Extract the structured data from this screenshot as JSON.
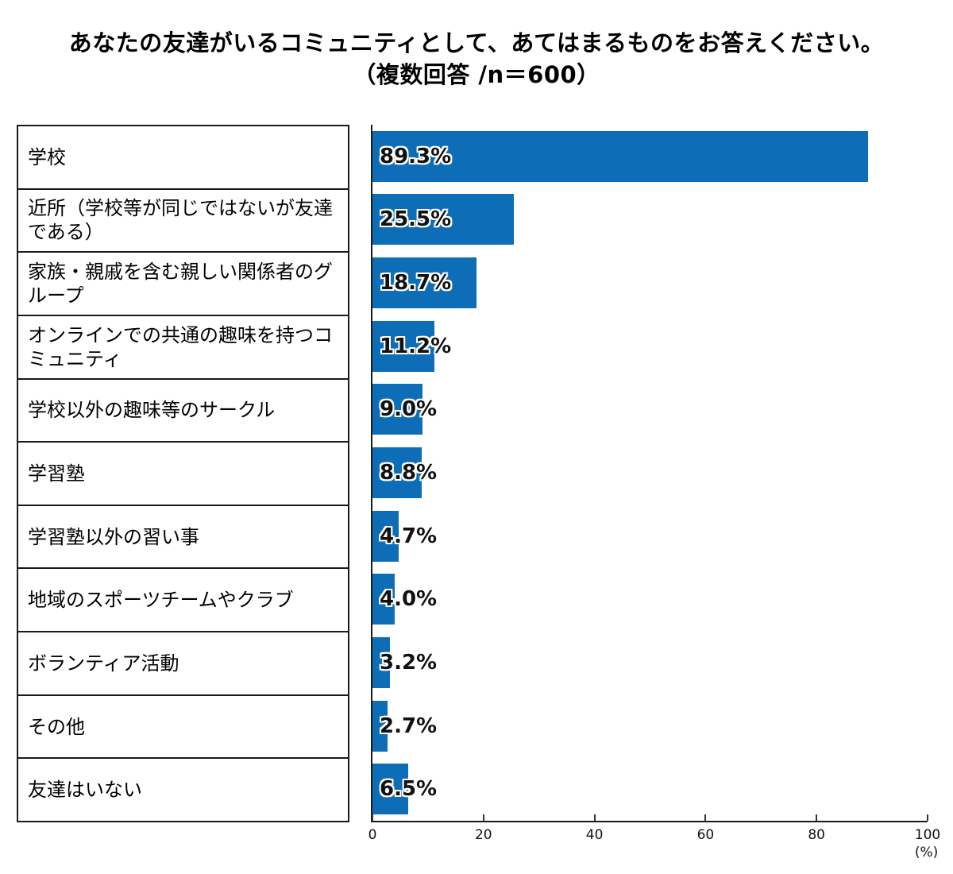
{
  "title": {
    "line1": "あなたの友達がいるコミュニティとして、あてはまるものをお答えください。",
    "line2": "（複数回答 /n＝600）"
  },
  "chart_data": {
    "type": "bar",
    "orientation": "horizontal",
    "title": "あなたの友達がいるコミュニティとして、あてはまるものをお答えください。（複数回答 /n＝600）",
    "sample_note": "複数回答 /n＝600",
    "categories": [
      "学校",
      "近所（学校等が同じではないが友達である）",
      "家族・親戚を含む親しい関係者のグループ",
      "オンラインでの共通の趣味を持つコミュニティ",
      "学校以外の趣味等のサークル",
      "学習塾",
      "学習塾以外の習い事",
      "地域のスポーツチームやクラブ",
      "ボランティア活動",
      "その他",
      "友達はいない"
    ],
    "values": [
      89.3,
      25.5,
      18.7,
      11.2,
      9.0,
      8.8,
      4.7,
      4.0,
      3.2,
      2.7,
      6.5
    ],
    "value_labels": [
      "89.3%",
      "25.5%",
      "18.7%",
      "11.2%",
      "9.0%",
      "8.8%",
      "4.7%",
      "4.0%",
      "3.2%",
      "2.7%",
      "6.5%"
    ],
    "xlabel": "(%)",
    "x_ticks": [
      0,
      20,
      40,
      60,
      80,
      100
    ],
    "xlim": [
      0,
      100
    ],
    "bar_color": "#0d6eb7",
    "axis_color": "#1a1a1a",
    "grid": false,
    "legend": false
  }
}
